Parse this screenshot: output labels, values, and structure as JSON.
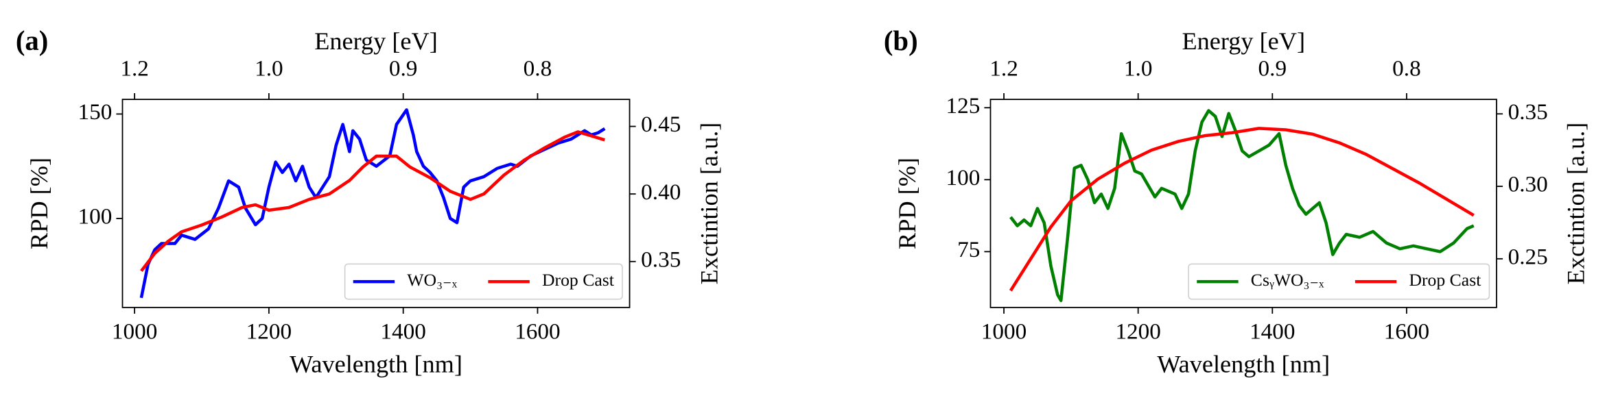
{
  "chart_data": [
    {
      "type": "line",
      "panel_label": "(a)",
      "x2label": "Energy [eV]",
      "xlabel": "Wavelength [nm]",
      "ylabel": "RPD [%]",
      "y2label": "Exctintion [a.u.]",
      "xlim": [
        982,
        1737
      ],
      "xticks": [
        1000,
        1200,
        1400,
        1600
      ],
      "x2ticks": [
        1.2,
        {
          "value": 1,
          "label": "1.0"
        },
        0.9,
        0.8
      ],
      "ylim": [
        57.4,
        157
      ],
      "yticks": [
        100,
        150
      ],
      "y2lim": [
        0.316,
        0.47
      ],
      "y2ticks": [
        0.35,
        {
          "value": 0.4,
          "label": "0.40"
        },
        0.45
      ],
      "legend": "lower right",
      "series": [
        {
          "name": "WO₃₋ₓ",
          "color": "#0000ff",
          "x": [
            1010,
            1020,
            1030,
            1040,
            1060,
            1070,
            1090,
            1110,
            1125,
            1140,
            1155,
            1165,
            1180,
            1190,
            1200,
            1210,
            1220,
            1230,
            1240,
            1250,
            1260,
            1270,
            1280,
            1290,
            1300,
            1310,
            1320,
            1325,
            1335,
            1345,
            1360,
            1380,
            1390,
            1405,
            1415,
            1420,
            1430,
            1440,
            1450,
            1460,
            1470,
            1480,
            1490,
            1500,
            1520,
            1540,
            1560,
            1570,
            1590,
            1610,
            1630,
            1650,
            1670,
            1680,
            1690,
            1700
          ],
          "values": [
            62,
            78,
            85,
            88,
            88,
            92,
            90,
            95,
            105,
            118,
            115,
            105,
            97,
            100,
            115,
            127,
            122,
            126,
            118,
            125,
            115,
            110,
            115,
            120,
            135,
            145,
            132,
            142,
            138,
            128,
            125,
            130,
            145,
            152,
            140,
            132,
            125,
            122,
            118,
            110,
            100,
            98,
            115,
            118,
            120,
            124,
            126,
            125,
            130,
            133,
            136,
            138,
            142,
            140,
            141,
            143
          ]
        },
        {
          "name": "Drop Cast",
          "color": "#ff0000",
          "axis": "y2",
          "x": [
            1010,
            1030,
            1050,
            1070,
            1100,
            1130,
            1160,
            1180,
            1200,
            1230,
            1260,
            1290,
            1320,
            1340,
            1360,
            1390,
            1410,
            1440,
            1470,
            1500,
            1520,
            1550,
            1580,
            1610,
            1640,
            1660,
            1680,
            1700
          ],
          "values": [
            0.343,
            0.356,
            0.365,
            0.372,
            0.377,
            0.383,
            0.39,
            0.392,
            0.388,
            0.39,
            0.396,
            0.4,
            0.41,
            0.42,
            0.428,
            0.428,
            0.42,
            0.412,
            0.402,
            0.396,
            0.4,
            0.414,
            0.425,
            0.434,
            0.442,
            0.446,
            0.443,
            0.44
          ]
        }
      ]
    },
    {
      "type": "line",
      "panel_label": "(b)",
      "x2label": "Energy [eV]",
      "xlabel": "Wavelength [nm]",
      "ylabel": "RPD [%]",
      "y2label": "Exctintion [a.u.]",
      "xlim": [
        980,
        1734
      ],
      "xticks": [
        1000,
        1200,
        1400,
        1600
      ],
      "x2ticks": [
        1.2,
        {
          "value": 1,
          "label": "1.0"
        },
        0.9,
        0.8
      ],
      "ylim": [
        55.6,
        127.9
      ],
      "yticks": [
        75,
        100,
        125
      ],
      "y2lim": [
        0.2164,
        0.36
      ],
      "y2ticks": [
        0.25,
        {
          "value": 0.3,
          "label": "0.30"
        },
        0.35
      ],
      "legend": "lower right",
      "series": [
        {
          "name": "CsᵧWO₃₋ₓ",
          "color": "#008000",
          "x": [
            1010,
            1020,
            1030,
            1040,
            1050,
            1060,
            1070,
            1080,
            1085,
            1095,
            1105,
            1115,
            1125,
            1135,
            1145,
            1155,
            1165,
            1175,
            1185,
            1195,
            1205,
            1215,
            1225,
            1235,
            1245,
            1255,
            1265,
            1275,
            1285,
            1295,
            1305,
            1315,
            1325,
            1335,
            1345,
            1355,
            1365,
            1380,
            1395,
            1410,
            1420,
            1430,
            1440,
            1450,
            1460,
            1470,
            1480,
            1490,
            1500,
            1510,
            1530,
            1550,
            1570,
            1590,
            1610,
            1630,
            1650,
            1670,
            1690,
            1700
          ],
          "values": [
            87,
            84,
            86,
            84,
            90,
            85,
            70,
            60,
            58,
            80,
            104,
            105,
            100,
            92,
            95,
            90,
            97,
            116,
            110,
            103,
            102,
            98,
            94,
            97,
            96,
            95,
            90,
            95,
            110,
            120,
            124,
            122,
            115,
            123,
            117,
            110,
            108,
            110,
            112,
            116,
            105,
            97,
            91,
            88,
            90,
            92,
            85,
            74,
            78,
            81,
            80,
            82,
            78,
            76,
            77,
            76,
            75,
            78,
            83,
            84
          ]
        },
        {
          "name": "Drop Cast",
          "color": "#ff0000",
          "axis": "y2",
          "x": [
            1010,
            1040,
            1070,
            1100,
            1140,
            1180,
            1220,
            1260,
            1300,
            1340,
            1380,
            1420,
            1460,
            1500,
            1540,
            1580,
            1620,
            1660,
            1700
          ],
          "values": [
            0.228,
            0.25,
            0.272,
            0.29,
            0.305,
            0.316,
            0.325,
            0.331,
            0.335,
            0.337,
            0.34,
            0.339,
            0.336,
            0.33,
            0.322,
            0.312,
            0.302,
            0.291,
            0.28
          ]
        }
      ]
    }
  ]
}
